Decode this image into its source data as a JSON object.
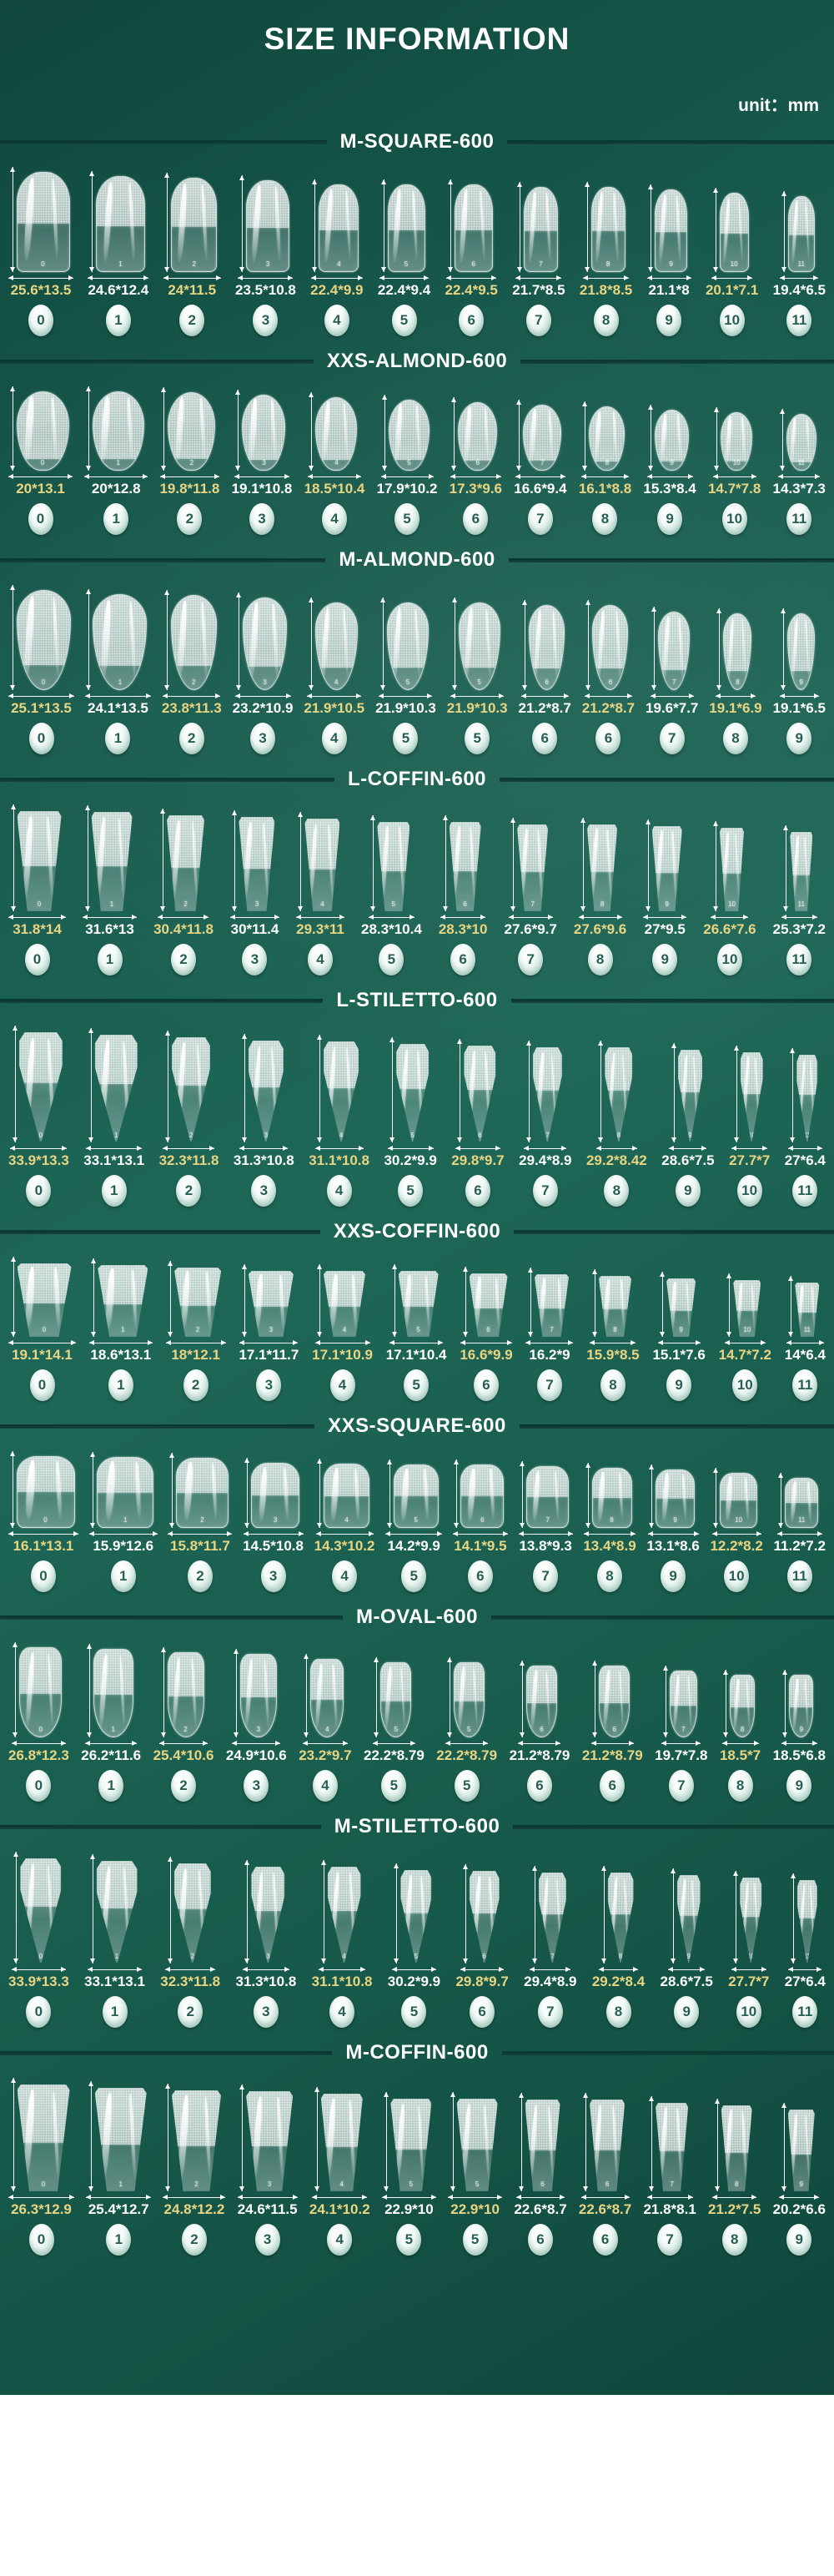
{
  "page": {
    "title": "SIZE INFORMATION",
    "unit_label": "unit：mm"
  },
  "colors": {
    "background_teal": "#1A6254",
    "divider_dark": "#0A362E",
    "label_gold": "#E7D584",
    "label_white": "#FFFFFF",
    "circle_number_teal": "#275F55",
    "footer_white": "#FFFFFF"
  },
  "sections": [
    {
      "title": "M-SQUARE-600",
      "shape": "square",
      "items": [
        {
          "size": "25.6*13.5",
          "num": "0",
          "gold": true
        },
        {
          "size": "24.6*12.4",
          "num": "1",
          "gold": false
        },
        {
          "size": "24*11.5",
          "num": "2",
          "gold": true
        },
        {
          "size": "23.5*10.8",
          "num": "3",
          "gold": false
        },
        {
          "size": "22.4*9.9",
          "num": "4",
          "gold": true
        },
        {
          "size": "22.4*9.4",
          "num": "5",
          "gold": false
        },
        {
          "size": "22.4*9.5",
          "num": "6",
          "gold": true
        },
        {
          "size": "21.7*8.5",
          "num": "7",
          "gold": false
        },
        {
          "size": "21.8*8.5",
          "num": "8",
          "gold": true
        },
        {
          "size": "21.1*8",
          "num": "9",
          "gold": false
        },
        {
          "size": "20.1*7.1",
          "num": "10",
          "gold": true
        },
        {
          "size": "19.4*6.5",
          "num": "11",
          "gold": false
        }
      ]
    },
    {
      "title": "XXS-ALMOND-600",
      "shape": "almond-short",
      "items": [
        {
          "size": "20*13.1",
          "num": "0",
          "gold": true
        },
        {
          "size": "20*12.8",
          "num": "1",
          "gold": false
        },
        {
          "size": "19.8*11.8",
          "num": "2",
          "gold": true
        },
        {
          "size": "19.1*10.8",
          "num": "3",
          "gold": false
        },
        {
          "size": "18.5*10.4",
          "num": "4",
          "gold": true
        },
        {
          "size": "17.9*10.2",
          "num": "5",
          "gold": false
        },
        {
          "size": "17.3*9.6",
          "num": "6",
          "gold": true
        },
        {
          "size": "16.6*9.4",
          "num": "7",
          "gold": false
        },
        {
          "size": "16.1*8.8",
          "num": "8",
          "gold": true
        },
        {
          "size": "15.3*8.4",
          "num": "9",
          "gold": false
        },
        {
          "size": "14.7*7.8",
          "num": "10",
          "gold": true
        },
        {
          "size": "14.3*7.3",
          "num": "11",
          "gold": false
        }
      ]
    },
    {
      "title": "M-ALMOND-600",
      "shape": "almond-long",
      "items": [
        {
          "size": "25.1*13.5",
          "num": "0",
          "gold": true
        },
        {
          "size": "24.1*13.5",
          "num": "1",
          "gold": false
        },
        {
          "size": "23.8*11.3",
          "num": "2",
          "gold": true
        },
        {
          "size": "23.2*10.9",
          "num": "3",
          "gold": false
        },
        {
          "size": "21.9*10.5",
          "num": "4",
          "gold": true
        },
        {
          "size": "21.9*10.3",
          "num": "5",
          "gold": false
        },
        {
          "size": "21.9*10.3",
          "num": "5",
          "gold": true
        },
        {
          "size": "21.2*8.7",
          "num": "6",
          "gold": false
        },
        {
          "size": "21.2*8.7",
          "num": "6",
          "gold": true
        },
        {
          "size": "19.6*7.7",
          "num": "7",
          "gold": false
        },
        {
          "size": "19.1*6.9",
          "num": "8",
          "gold": true
        },
        {
          "size": "19.1*6.5",
          "num": "9",
          "gold": false
        }
      ]
    },
    {
      "title": "L-COFFIN-600",
      "shape": "coffin",
      "items": [
        {
          "size": "31.8*14",
          "num": "0",
          "gold": true
        },
        {
          "size": "31.6*13",
          "num": "1",
          "gold": false
        },
        {
          "size": "30.4*11.8",
          "num": "2",
          "gold": true
        },
        {
          "size": "30*11.4",
          "num": "3",
          "gold": false
        },
        {
          "size": "29.3*11",
          "num": "4",
          "gold": true
        },
        {
          "size": "28.3*10.4",
          "num": "5",
          "gold": false
        },
        {
          "size": "28.3*10",
          "num": "6",
          "gold": true
        },
        {
          "size": "27.6*9.7",
          "num": "7",
          "gold": false
        },
        {
          "size": "27.6*9.6",
          "num": "8",
          "gold": true
        },
        {
          "size": "27*9.5",
          "num": "9",
          "gold": false
        },
        {
          "size": "26.6*7.6",
          "num": "10",
          "gold": true
        },
        {
          "size": "25.3*7.2",
          "num": "11",
          "gold": false
        }
      ]
    },
    {
      "title": "L-STILETTO-600",
      "shape": "stiletto",
      "items": [
        {
          "size": "33.9*13.3",
          "num": "0",
          "gold": true
        },
        {
          "size": "33.1*13.1",
          "num": "1",
          "gold": false
        },
        {
          "size": "32.3*11.8",
          "num": "2",
          "gold": true
        },
        {
          "size": "31.3*10.8",
          "num": "3",
          "gold": false
        },
        {
          "size": "31.1*10.8",
          "num": "4",
          "gold": true
        },
        {
          "size": "30.2*9.9",
          "num": "5",
          "gold": false
        },
        {
          "size": "29.8*9.7",
          "num": "6",
          "gold": true
        },
        {
          "size": "29.4*8.9",
          "num": "7",
          "gold": false
        },
        {
          "size": "29.2*8.42",
          "num": "8",
          "gold": true
        },
        {
          "size": "28.6*7.5",
          "num": "9",
          "gold": false
        },
        {
          "size": "27.7*7",
          "num": "10",
          "gold": true
        },
        {
          "size": "27*6.4",
          "num": "11",
          "gold": false
        }
      ]
    },
    {
      "title": "XXS-COFFIN-600",
      "shape": "coffin",
      "items": [
        {
          "size": "19.1*14.1",
          "num": "0",
          "gold": true
        },
        {
          "size": "18.6*13.1",
          "num": "1",
          "gold": false
        },
        {
          "size": "18*12.1",
          "num": "2",
          "gold": true
        },
        {
          "size": "17.1*11.7",
          "num": "3",
          "gold": false
        },
        {
          "size": "17.1*10.9",
          "num": "4",
          "gold": true
        },
        {
          "size": "17.1*10.4",
          "num": "5",
          "gold": false
        },
        {
          "size": "16.6*9.9",
          "num": "6",
          "gold": true
        },
        {
          "size": "16.2*9",
          "num": "7",
          "gold": false
        },
        {
          "size": "15.9*8.5",
          "num": "8",
          "gold": true
        },
        {
          "size": "15.1*7.6",
          "num": "9",
          "gold": false
        },
        {
          "size": "14.7*7.2",
          "num": "10",
          "gold": true
        },
        {
          "size": "14*6.4",
          "num": "11",
          "gold": false
        }
      ]
    },
    {
      "title": "XXS-SQUARE-600",
      "shape": "square-short",
      "items": [
        {
          "size": "16.1*13.1",
          "num": "0",
          "gold": true
        },
        {
          "size": "15.9*12.6",
          "num": "1",
          "gold": false
        },
        {
          "size": "15.8*11.7",
          "num": "2",
          "gold": true
        },
        {
          "size": "14.5*10.8",
          "num": "3",
          "gold": false
        },
        {
          "size": "14.3*10.2",
          "num": "4",
          "gold": true
        },
        {
          "size": "14.2*9.9",
          "num": "5",
          "gold": false
        },
        {
          "size": "14.1*9.5",
          "num": "6",
          "gold": true
        },
        {
          "size": "13.8*9.3",
          "num": "7",
          "gold": false
        },
        {
          "size": "13.4*8.9",
          "num": "8",
          "gold": true
        },
        {
          "size": "13.1*8.6",
          "num": "9",
          "gold": false
        },
        {
          "size": "12.2*8.2",
          "num": "10",
          "gold": true
        },
        {
          "size": "11.2*7.2",
          "num": "11",
          "gold": false
        }
      ]
    },
    {
      "title": "M-OVAL-600",
      "shape": "oval",
      "items": [
        {
          "size": "26.8*12.3",
          "num": "0",
          "gold": true
        },
        {
          "size": "26.2*11.6",
          "num": "1",
          "gold": false
        },
        {
          "size": "25.4*10.6",
          "num": "2",
          "gold": true
        },
        {
          "size": "24.9*10.6",
          "num": "3",
          "gold": false
        },
        {
          "size": "23.2*9.7",
          "num": "4",
          "gold": true
        },
        {
          "size": "22.2*8.79",
          "num": "5",
          "gold": false
        },
        {
          "size": "22.2*8.79",
          "num": "5",
          "gold": true
        },
        {
          "size": "21.2*8.79",
          "num": "6",
          "gold": false
        },
        {
          "size": "21.2*8.79",
          "num": "6",
          "gold": true
        },
        {
          "size": "19.7*7.8",
          "num": "7",
          "gold": false
        },
        {
          "size": "18.5*7",
          "num": "8",
          "gold": true
        },
        {
          "size": "18.5*6.8",
          "num": "9",
          "gold": false
        }
      ]
    },
    {
      "title": "M-STILETTO-600",
      "shape": "stiletto",
      "items": [
        {
          "size": "33.9*13.3",
          "num": "0",
          "gold": true
        },
        {
          "size": "33.1*13.1",
          "num": "1",
          "gold": false
        },
        {
          "size": "32.3*11.8",
          "num": "2",
          "gold": true
        },
        {
          "size": "31.3*10.8",
          "num": "3",
          "gold": false
        },
        {
          "size": "31.1*10.8",
          "num": "4",
          "gold": true
        },
        {
          "size": "30.2*9.9",
          "num": "5",
          "gold": false
        },
        {
          "size": "29.8*9.7",
          "num": "6",
          "gold": true
        },
        {
          "size": "29.4*8.9",
          "num": "7",
          "gold": false
        },
        {
          "size": "29.2*8.4",
          "num": "8",
          "gold": true
        },
        {
          "size": "28.6*7.5",
          "num": "9",
          "gold": false
        },
        {
          "size": "27.7*7",
          "num": "10",
          "gold": true
        },
        {
          "size": "27*6.4",
          "num": "11",
          "gold": false
        }
      ]
    },
    {
      "title": "M-COFFIN-600",
      "shape": "coffin",
      "items": [
        {
          "size": "26.3*12.9",
          "num": "0",
          "gold": true
        },
        {
          "size": "25.4*12.7",
          "num": "1",
          "gold": false
        },
        {
          "size": "24.8*12.2",
          "num": "2",
          "gold": true
        },
        {
          "size": "24.6*11.5",
          "num": "3",
          "gold": false
        },
        {
          "size": "24.1*10.2",
          "num": "4",
          "gold": true
        },
        {
          "size": "22.9*10",
          "num": "5",
          "gold": false
        },
        {
          "size": "22.9*10",
          "num": "5",
          "gold": true
        },
        {
          "size": "22.6*8.7",
          "num": "6",
          "gold": false
        },
        {
          "size": "22.6*8.7",
          "num": "6",
          "gold": true
        },
        {
          "size": "21.8*8.1",
          "num": "7",
          "gold": false
        },
        {
          "size": "21.2*7.5",
          "num": "8",
          "gold": true
        },
        {
          "size": "20.2*6.6",
          "num": "9",
          "gold": false
        }
      ]
    }
  ]
}
